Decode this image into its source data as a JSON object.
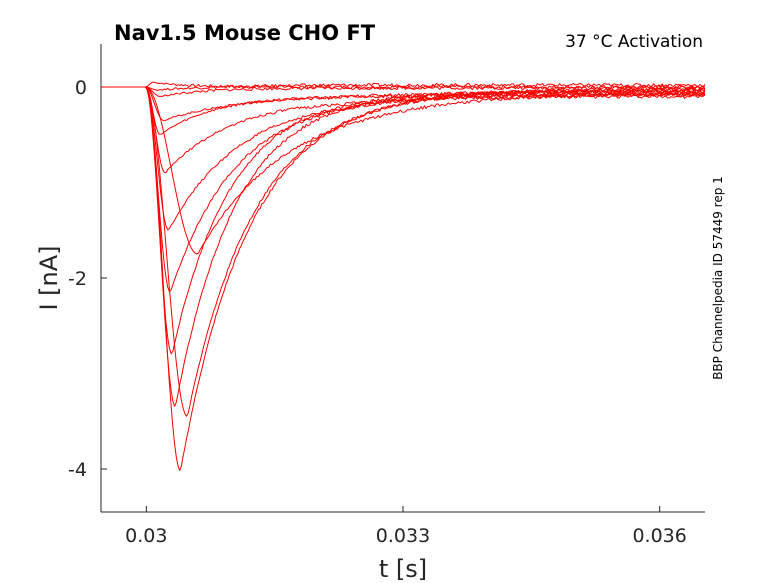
{
  "chart_data": {
    "type": "line",
    "title": "Nav1.5  Mouse  CHO FT",
    "subtitle": "37 °C  Activation",
    "side_label": "BBP Channelpedia ID 57449 rep 1",
    "xlabel": "t [s]",
    "ylabel": "I [nA]",
    "xlim": [
      0.02947,
      0.03653
    ],
    "ylim": [
      -4.45,
      0.45
    ],
    "x_ticks": [
      0.03,
      0.033,
      0.036
    ],
    "x_tick_labels": [
      "0.03",
      "0.033",
      "0.036"
    ],
    "y_ticks": [
      0,
      -2,
      -4
    ],
    "y_tick_labels": [
      "0",
      "-2",
      "-4"
    ],
    "grid": false,
    "legend": "none",
    "line_color": "#ff0000",
    "series": [
      {
        "peak_t": 0.03008,
        "peak_i": 0.05,
        "tau": 0.0004,
        "end_i": 0.0
      },
      {
        "peak_t": 0.03012,
        "peak_i": -0.03,
        "tau": 0.0005,
        "end_i": 0.02
      },
      {
        "peak_t": 0.03016,
        "peak_i": -0.1,
        "tau": 0.0006,
        "end_i": -0.01
      },
      {
        "peak_t": 0.0302,
        "peak_i": -0.35,
        "tau": 0.0012,
        "end_i": -0.05
      },
      {
        "peak_t": 0.03016,
        "peak_i": -0.5,
        "tau": 0.0008,
        "end_i": -0.08
      },
      {
        "peak_t": 0.03022,
        "peak_i": -0.9,
        "tau": 0.0009,
        "end_i": -0.1
      },
      {
        "peak_t": 0.03026,
        "peak_i": -1.5,
        "tau": 0.0009,
        "end_i": -0.08
      },
      {
        "peak_t": 0.0306,
        "peak_i": -1.75,
        "tau": 0.0011,
        "end_i": -0.06
      },
      {
        "peak_t": 0.03028,
        "peak_i": -2.15,
        "tau": 0.0008,
        "end_i": -0.07
      },
      {
        "peak_t": 0.0303,
        "peak_i": -2.8,
        "tau": 0.0007,
        "end_i": -0.05
      },
      {
        "peak_t": 0.03034,
        "peak_i": -3.35,
        "tau": 0.0007,
        "end_i": -0.04
      },
      {
        "peak_t": 0.03048,
        "peak_i": -3.45,
        "tau": 0.0008,
        "end_i": -0.03
      },
      {
        "peak_t": 0.0304,
        "peak_i": -4.02,
        "tau": 0.0008,
        "end_i": -0.02
      }
    ]
  }
}
